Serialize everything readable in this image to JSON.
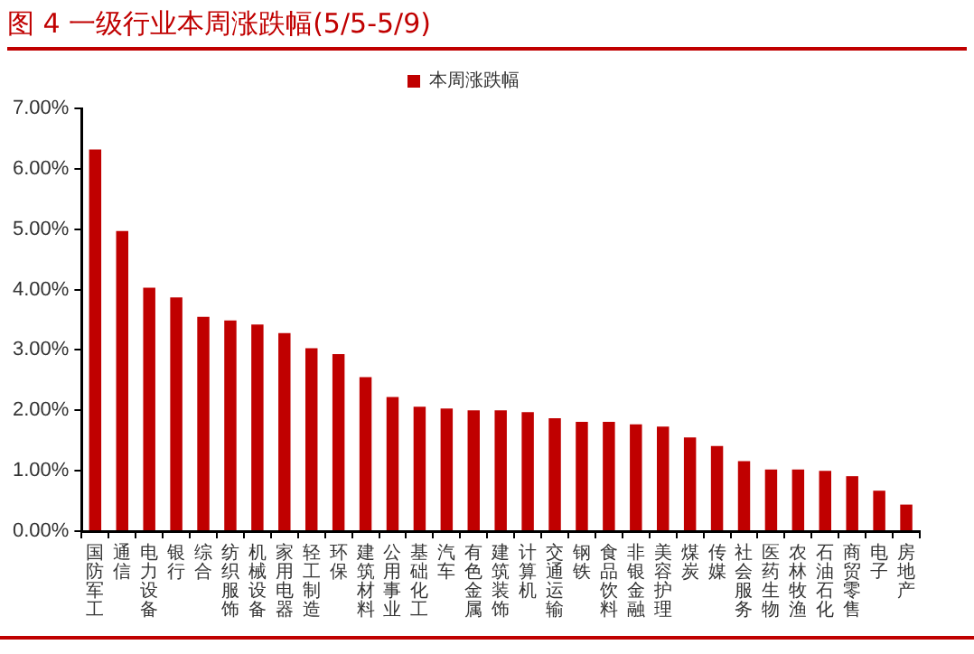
{
  "chart_data": {
    "type": "bar",
    "title": "图 4 一级行业本周涨跌幅(5/5-5/9)",
    "categories": [
      "国防军工",
      "通信",
      "电力设备",
      "银行",
      "综合",
      "纺织服饰",
      "机械设备",
      "家用电器",
      "轻工制造",
      "环保",
      "建筑材料",
      "公用事业",
      "基础化工",
      "汽车",
      "有色金属",
      "建筑装饰",
      "计算机",
      "交通运输",
      "钢铁",
      "食品饮料",
      "非银金融",
      "美容护理",
      "煤炭",
      "传媒",
      "社会服务",
      "医药生物",
      "农林牧渔",
      "石油石化",
      "商贸零售",
      "电子",
      "房地产"
    ],
    "series": [
      {
        "name": "本周涨跌幅",
        "color": "#c00000",
        "values": [
          6.32,
          4.97,
          4.03,
          3.87,
          3.55,
          3.49,
          3.42,
          3.28,
          3.03,
          2.93,
          2.55,
          2.22,
          2.06,
          2.03,
          2.0,
          2.0,
          1.97,
          1.87,
          1.81,
          1.81,
          1.77,
          1.73,
          1.55,
          1.41,
          1.16,
          1.02,
          1.02,
          1.0,
          0.91,
          0.67,
          0.44
        ]
      }
    ],
    "ylim": [
      0,
      7
    ],
    "yticks": [
      {
        "value": 0,
        "label": "0.00%"
      },
      {
        "value": 1,
        "label": "1.00%"
      },
      {
        "value": 2,
        "label": "2.00%"
      },
      {
        "value": 3,
        "label": "3.00%"
      },
      {
        "value": 4,
        "label": "4.00%"
      },
      {
        "value": 5,
        "label": "5.00%"
      },
      {
        "value": 6,
        "label": "6.00%"
      },
      {
        "value": 7,
        "label": "7.00%"
      }
    ],
    "grid": false,
    "legend": "top"
  }
}
